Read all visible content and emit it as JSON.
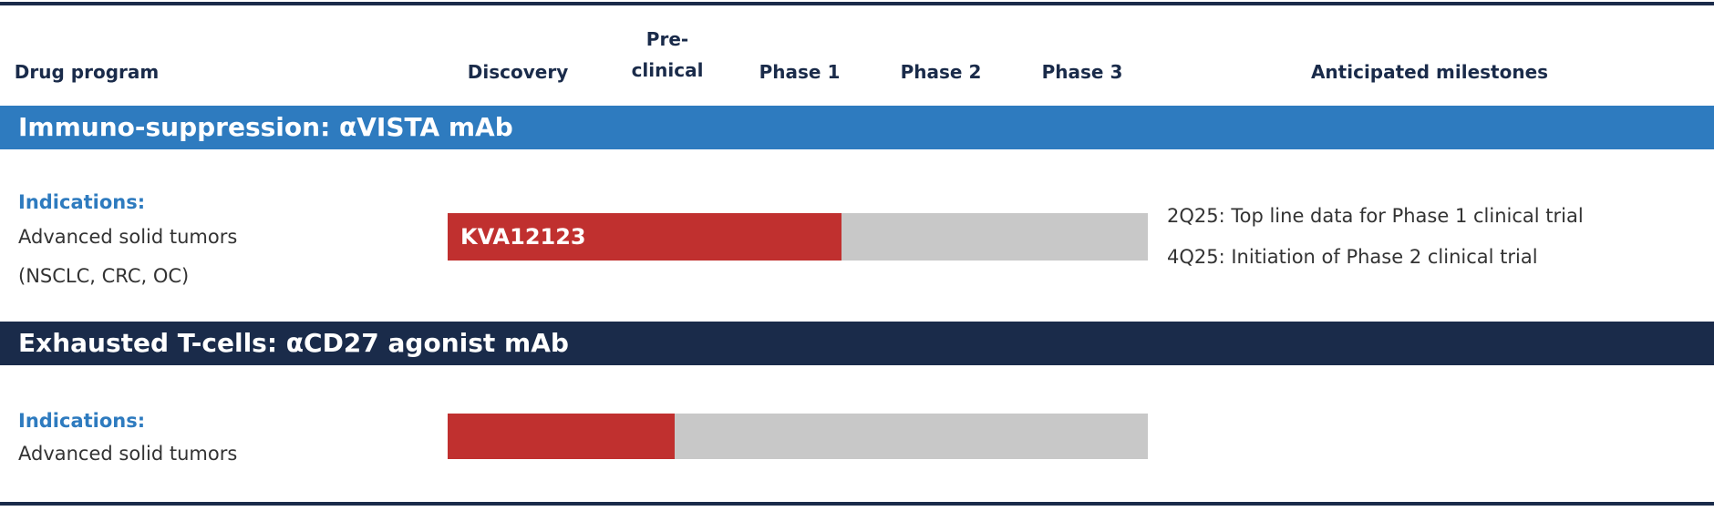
{
  "header": {
    "columns": [
      "Drug program",
      "Discovery",
      "Pre-\nclinical",
      "Phase 1",
      "Phase 2",
      "Phase 3",
      "Anticipated milestones"
    ]
  },
  "programs": [
    {
      "section": "Immuno-suppression:  αVISTA mAb",
      "indications_label": "Indications:",
      "indications": [
        "Advanced solid tumors",
        "(NSCLC, CRC, OC)"
      ],
      "candidate": "KVA12123",
      "milestones": [
        "2Q25: Top line data for Phase 1 clinical trial",
        "4Q25: Initiation of Phase 2 clinical trial"
      ]
    },
    {
      "section": "Exhausted T-cells:  αCD27 agonist mAb",
      "indications_label": "Indications:",
      "indications": [
        "Advanced solid tumors"
      ]
    }
  ]
}
